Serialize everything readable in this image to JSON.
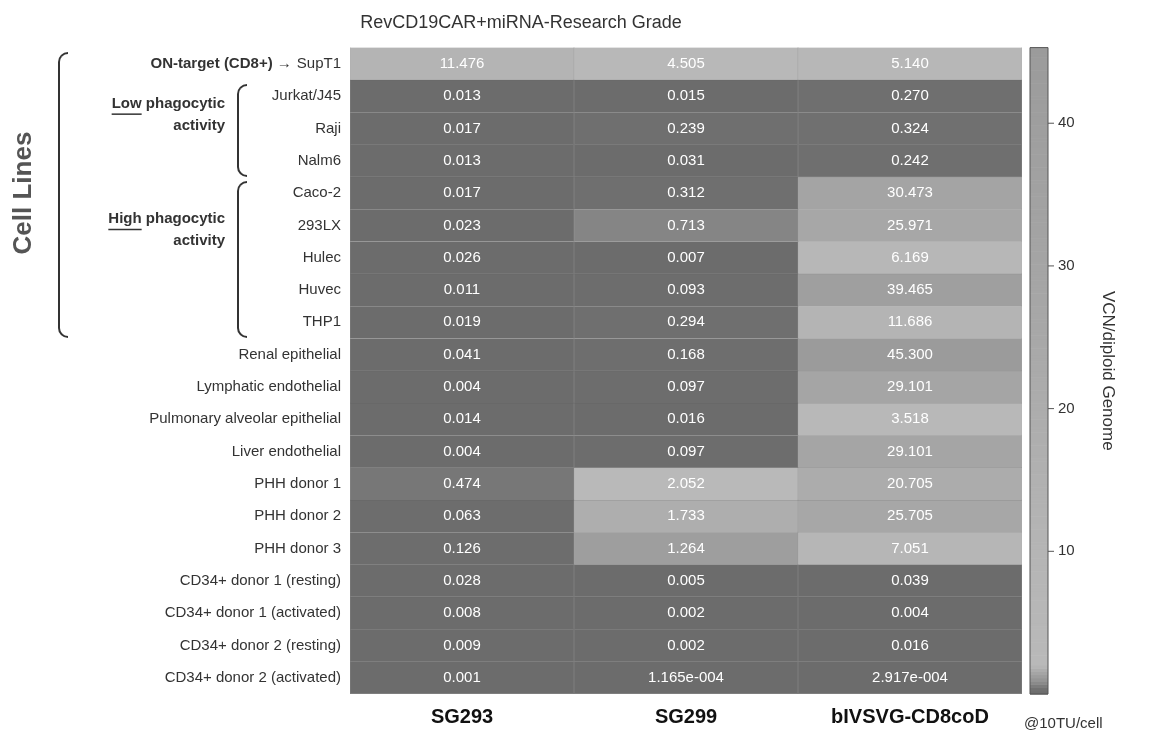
{
  "chart_data": {
    "type": "heatmap",
    "title": "RevCD19CAR+miRNA-Research Grade",
    "ylabel": "Cell Lines",
    "clabel": "VCN/diploid Genome",
    "categories": [
      "SG293",
      "SG299",
      "bIVSVG-CD8coD"
    ],
    "y_categories": [
      "SupT1",
      "Jurkat/J45",
      "Raji",
      "Nalm6",
      "Caco-2",
      "293LX",
      "Hulec",
      "Huvec",
      "THP1",
      "Renal epithelial",
      "Lymphatic endothelial",
      "Pulmonary alveolar epithelial",
      "Liver endothelial",
      "PHH donor 1",
      "PHH donor 2",
      "PHH donor 3",
      "CD34+ donor 1 (resting)",
      "CD34+ donor 1 (activated)",
      "CD34+ donor 2 (resting)",
      "CD34+ donor 2 (activated)"
    ],
    "cells": [
      [
        11.476,
        4.505,
        5.14
      ],
      [
        0.013,
        0.015,
        0.27
      ],
      [
        0.017,
        0.239,
        0.324
      ],
      [
        0.013,
        0.031,
        0.242
      ],
      [
        0.017,
        0.312,
        30.473
      ],
      [
        0.023,
        0.713,
        25.971
      ],
      [
        0.026,
        0.007,
        6.169
      ],
      [
        0.011,
        0.093,
        39.465
      ],
      [
        0.019,
        0.294,
        11.686
      ],
      [
        0.041,
        0.168,
        45.3
      ],
      [
        0.004,
        0.097,
        29.101
      ],
      [
        0.014,
        0.016,
        3.518
      ],
      [
        0.004,
        0.097,
        29.101
      ],
      [
        0.474,
        2.052,
        20.705
      ],
      [
        0.063,
        1.733,
        25.705
      ],
      [
        0.126,
        1.264,
        7.051
      ],
      [
        0.028,
        0.005,
        0.039
      ],
      [
        0.008,
        0.002,
        0.004
      ],
      [
        0.009,
        0.002,
        0.016
      ],
      [
        0.001,
        0.0001165,
        0.0002917
      ]
    ],
    "cell_labels": [
      [
        "11.476",
        "4.505",
        "5.140"
      ],
      [
        "0.013",
        "0.015",
        "0.270"
      ],
      [
        "0.017",
        "0.239",
        "0.324"
      ],
      [
        "0.013",
        "0.031",
        "0.242"
      ],
      [
        "0.017",
        "0.312",
        "30.473"
      ],
      [
        "0.023",
        "0.713",
        "25.971"
      ],
      [
        "0.026",
        "0.007",
        "6.169"
      ],
      [
        "0.011",
        "0.093",
        "39.465"
      ],
      [
        "0.019",
        "0.294",
        "11.686"
      ],
      [
        "0.041",
        "0.168",
        "45.300"
      ],
      [
        "0.004",
        "0.097",
        "29.101"
      ],
      [
        "0.014",
        "0.016",
        "3.518"
      ],
      [
        "0.004",
        "0.097",
        "29.101"
      ],
      [
        "0.474",
        "2.052",
        "20.705"
      ],
      [
        "0.063",
        "1.733",
        "25.705"
      ],
      [
        "0.126",
        "1.264",
        "7.051"
      ],
      [
        "0.028",
        "0.005",
        "0.039"
      ],
      [
        "0.008",
        "0.002",
        "0.004"
      ],
      [
        "0.009",
        "0.002",
        "0.016"
      ],
      [
        "0.001",
        "1.165e-004",
        "2.917e-004"
      ]
    ],
    "clim": [
      0,
      45.3
    ],
    "cticks": [
      10,
      20,
      30,
      40
    ],
    "annotations": [
      "ON-target (CD8+) →",
      "Low phagocytic activity",
      "High phagocytic activity",
      "@10TU/cell"
    ]
  }
}
